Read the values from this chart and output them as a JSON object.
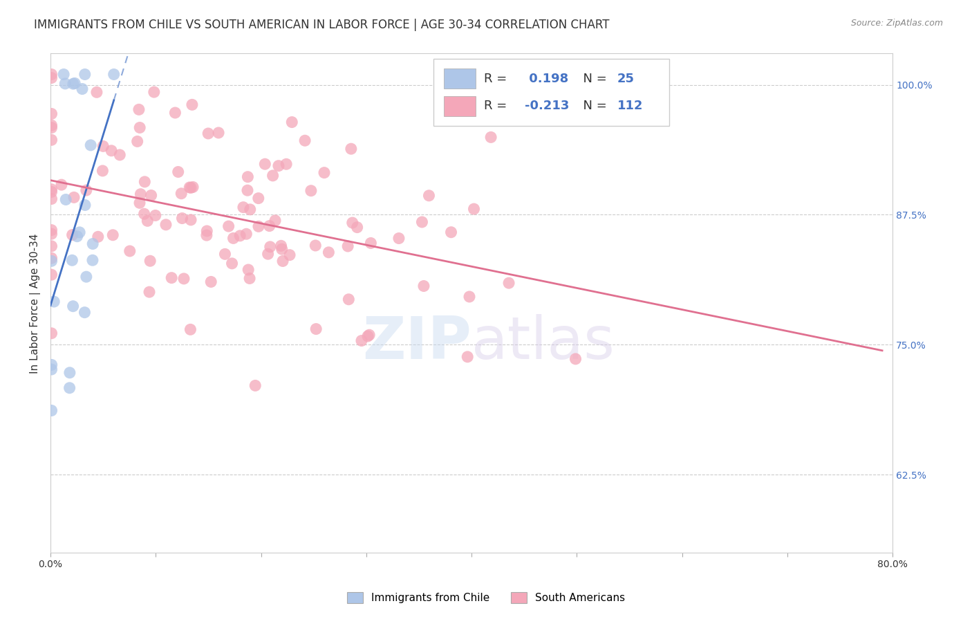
{
  "title": "IMMIGRANTS FROM CHILE VS SOUTH AMERICAN IN LABOR FORCE | AGE 30-34 CORRELATION CHART",
  "source": "Source: ZipAtlas.com",
  "ylabel": "In Labor Force | Age 30-34",
  "xlim": [
    0.0,
    0.8
  ],
  "ylim": [
    0.55,
    1.03
  ],
  "xticks": [
    0.0,
    0.1,
    0.2,
    0.3,
    0.4,
    0.5,
    0.6,
    0.7,
    0.8
  ],
  "xticklabels": [
    "0.0%",
    "",
    "",
    "",
    "",
    "",
    "",
    "",
    "80.0%"
  ],
  "yticks_right": [
    0.625,
    0.75,
    0.875,
    1.0
  ],
  "yticklabels_right": [
    "62.5%",
    "75.0%",
    "87.5%",
    "100.0%"
  ],
  "chile_R": 0.198,
  "chile_N": 25,
  "sa_R": -0.213,
  "sa_N": 112,
  "chile_color": "#aec6e8",
  "sa_color": "#f4a7b9",
  "chile_line_color": "#4472c4",
  "sa_line_color": "#e07090",
  "legend_text_color": "#333333",
  "legend_value_color": "#4472c4",
  "title_fontsize": 12,
  "legend_fontsize": 13,
  "axis_label_fontsize": 11,
  "tick_fontsize": 10,
  "watermark_text": "ZIPatlas",
  "background_color": "#ffffff",
  "grid_color": "#cccccc"
}
